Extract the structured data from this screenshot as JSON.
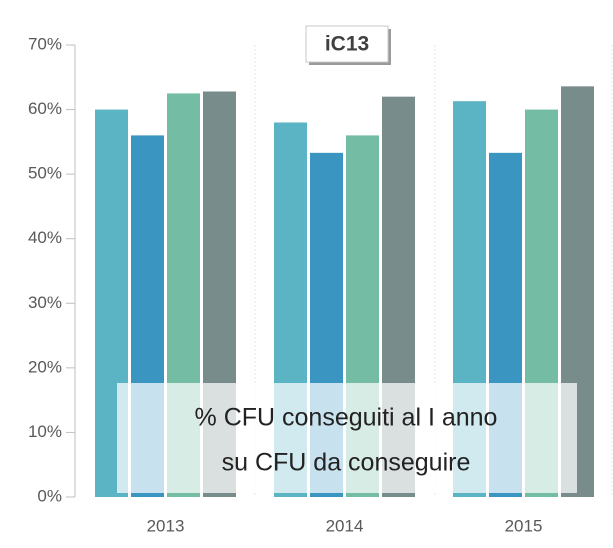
{
  "chart_data": {
    "type": "bar",
    "title": "iC13",
    "annotation": [
      "% CFU conseguiti al I anno",
      "su CFU da conseguire"
    ],
    "categories": [
      "2013",
      "2014",
      "2015"
    ],
    "series": [
      {
        "color": "#5ab4c4",
        "values": [
          60,
          58,
          61.3
        ]
      },
      {
        "color": "#3a95c0",
        "values": [
          56,
          53.3,
          53.3
        ]
      },
      {
        "color": "#74bca4",
        "values": [
          62.5,
          56,
          60
        ]
      },
      {
        "color": "#798c8c",
        "values": [
          62.8,
          62,
          63.6
        ]
      }
    ],
    "ylim": [
      0,
      70
    ],
    "yticks": [
      {
        "value": 0,
        "label": "0%"
      },
      {
        "value": 10,
        "label": "10%"
      },
      {
        "value": 20,
        "label": "20%"
      },
      {
        "value": 30,
        "label": "30%"
      },
      {
        "value": 40,
        "label": "40%"
      },
      {
        "value": 50,
        "label": "50%"
      },
      {
        "value": 60,
        "label": "60%"
      },
      {
        "value": 70,
        "label": "70%"
      }
    ]
  }
}
